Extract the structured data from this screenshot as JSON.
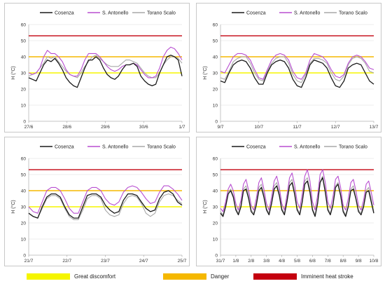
{
  "colors": {
    "cosenza": "#1a1a1a",
    "s_antonello": "#b84fd1",
    "torano": "#a8a8a8",
    "great_discomfort": "#f5f500",
    "danger": "#f5b800",
    "heat_stroke": "#c4000f"
  },
  "thresholds": [
    {
      "label": "Great discomfort",
      "value": 30,
      "color_key": "great_discomfort"
    },
    {
      "label": "Danger",
      "value": 40,
      "color_key": "danger"
    },
    {
      "label": "Imminent heat stroke",
      "value": 53,
      "color_key": "heat_stroke"
    }
  ],
  "chart_data": [
    {
      "type": "line",
      "ylabel": "H (°C)",
      "ylim": [
        0,
        60
      ],
      "yticks": [
        0,
        10,
        20,
        30,
        40,
        50,
        60
      ],
      "xticks": [
        "27/6",
        "28/6",
        "29/6",
        "30/6",
        "1/7"
      ],
      "legend_position": "top",
      "series": [
        {
          "name": "Cosenza",
          "color_key": "cosenza",
          "values": [
            27,
            26,
            25,
            30,
            35,
            38,
            37,
            39,
            36,
            32,
            27,
            24,
            22,
            21,
            27,
            33,
            38,
            38,
            40,
            38,
            33,
            29,
            27,
            26,
            28,
            32,
            35,
            35,
            36,
            34,
            28,
            25,
            23,
            22,
            23,
            30,
            35,
            40,
            41,
            40,
            38,
            28
          ]
        },
        {
          "name": "S. Antonello",
          "color_key": "s_antonello",
          "values": [
            30,
            29,
            30,
            33,
            40,
            44,
            42,
            42,
            40,
            37,
            32,
            29,
            28,
            28,
            32,
            38,
            42,
            42,
            42,
            40,
            37,
            34,
            32,
            31,
            32,
            34,
            35,
            35,
            36,
            35,
            32,
            29,
            27,
            27,
            28,
            33,
            40,
            44,
            46,
            45,
            42,
            38
          ]
        },
        {
          "name": "Torano Scalo",
          "color_key": "torano",
          "values": [
            28,
            29,
            30,
            33,
            36,
            40,
            39,
            40,
            37,
            34,
            31,
            29,
            28,
            27,
            30,
            34,
            37,
            40,
            41,
            39,
            37,
            35,
            34,
            34,
            34,
            36,
            38,
            38,
            37,
            36,
            33,
            30,
            28,
            27,
            27,
            30,
            35,
            38,
            40,
            40,
            39,
            36
          ]
        }
      ]
    },
    {
      "type": "line",
      "ylabel": "H (°C)",
      "ylim": [
        0,
        60
      ],
      "yticks": [
        0,
        10,
        20,
        30,
        40,
        50,
        60
      ],
      "xticks": [
        "9/7",
        "10/7",
        "11/7",
        "12/7",
        "13/7"
      ],
      "legend_position": "top",
      "series": [
        {
          "name": "Cosenza",
          "color_key": "cosenza",
          "values": [
            25,
            24,
            30,
            35,
            37,
            38,
            37,
            33,
            27,
            23,
            23,
            30,
            35,
            37,
            38,
            37,
            33,
            26,
            22,
            21,
            27,
            35,
            38,
            37,
            36,
            33,
            27,
            22,
            21,
            25,
            33,
            35,
            36,
            35,
            30,
            25,
            23
          ]
        },
        {
          "name": "S. Antonello",
          "color_key": "s_antonello",
          "values": [
            31,
            30,
            35,
            40,
            42,
            42,
            41,
            38,
            32,
            27,
            26,
            32,
            38,
            41,
            42,
            41,
            38,
            31,
            27,
            26,
            30,
            38,
            42,
            41,
            40,
            37,
            32,
            28,
            27,
            29,
            36,
            40,
            41,
            40,
            37,
            33,
            32
          ]
        },
        {
          "name": "Torano Scalo",
          "color_key": "torano",
          "values": [
            27,
            26,
            31,
            37,
            39,
            40,
            40,
            36,
            30,
            26,
            25,
            31,
            36,
            39,
            40,
            40,
            36,
            29,
            25,
            24,
            29,
            36,
            39,
            39,
            38,
            36,
            30,
            26,
            25,
            28,
            35,
            39,
            40,
            39,
            36,
            31,
            30
          ]
        }
      ]
    },
    {
      "type": "line",
      "ylabel": "H (°C)",
      "ylim": [
        0,
        60
      ],
      "yticks": [
        0,
        10,
        20,
        30,
        40,
        50,
        60
      ],
      "xticks": [
        "21/7",
        "22/7",
        "23/7",
        "24/7",
        "25/7"
      ],
      "legend_position": "top",
      "series": [
        {
          "name": "Cosenza",
          "color_key": "cosenza",
          "values": [
            26,
            24,
            23,
            30,
            36,
            38,
            38,
            36,
            30,
            25,
            23,
            23,
            30,
            37,
            38,
            38,
            36,
            31,
            28,
            26,
            27,
            34,
            38,
            38,
            37,
            33,
            29,
            27,
            28,
            35,
            39,
            40,
            38,
            33,
            31
          ]
        },
        {
          "name": "S. Antonello",
          "color_key": "s_antonello",
          "values": [
            30,
            27,
            26,
            33,
            40,
            42,
            42,
            40,
            35,
            29,
            26,
            26,
            33,
            40,
            42,
            42,
            40,
            35,
            32,
            31,
            33,
            39,
            42,
            43,
            42,
            39,
            35,
            32,
            33,
            39,
            43,
            43,
            41,
            38,
            34
          ]
        },
        {
          "name": "Torano Scalo",
          "color_key": "torano",
          "values": [
            26,
            24,
            23,
            29,
            35,
            37,
            37,
            35,
            29,
            24,
            22,
            22,
            28,
            35,
            37,
            37,
            35,
            28,
            25,
            24,
            25,
            32,
            36,
            37,
            36,
            32,
            26,
            24,
            26,
            33,
            37,
            38,
            37,
            34,
            32
          ]
        }
      ]
    },
    {
      "type": "line",
      "ylabel": "H (°C)",
      "ylim": [
        0,
        60
      ],
      "yticks": [
        0,
        10,
        20,
        30,
        40,
        50,
        60
      ],
      "xticks": [
        "31/7",
        "1/8",
        "2/8",
        "3/8",
        "4/8",
        "5/8",
        "6/8",
        "7/8",
        "8/8",
        "9/8",
        "10/8"
      ],
      "legend_position": "top",
      "series": [
        {
          "name": "Cosenza",
          "color_key": "cosenza",
          "values": [
            26,
            24,
            30,
            38,
            40,
            36,
            28,
            25,
            30,
            40,
            41,
            35,
            27,
            25,
            31,
            40,
            42,
            36,
            28,
            25,
            32,
            41,
            43,
            37,
            28,
            25,
            33,
            43,
            45,
            38,
            28,
            25,
            33,
            44,
            46,
            39,
            28,
            24,
            32,
            45,
            48,
            39,
            28,
            25,
            31,
            42,
            44,
            37,
            27,
            24,
            30,
            40,
            41,
            35,
            27,
            25,
            30,
            39,
            40,
            33,
            26
          ]
        },
        {
          "name": "S. Antonello",
          "color_key": "s_antonello",
          "values": [
            29,
            27,
            33,
            41,
            44,
            40,
            32,
            28,
            34,
            44,
            47,
            40,
            31,
            28,
            35,
            45,
            48,
            41,
            32,
            28,
            36,
            46,
            49,
            42,
            32,
            28,
            37,
            48,
            51,
            44,
            33,
            29,
            38,
            49,
            53,
            46,
            33,
            28,
            37,
            50,
            53,
            45,
            33,
            29,
            36,
            47,
            49,
            42,
            31,
            28,
            35,
            45,
            47,
            40,
            31,
            28,
            34,
            44,
            46,
            39,
            31
          ]
        },
        {
          "name": "Torano Scalo",
          "color_key": "torano",
          "values": [
            27,
            25,
            31,
            39,
            41,
            37,
            29,
            26,
            31,
            41,
            43,
            37,
            28,
            26,
            32,
            42,
            44,
            38,
            29,
            26,
            33,
            43,
            45,
            39,
            29,
            26,
            34,
            45,
            47,
            40,
            29,
            26,
            34,
            46,
            48,
            41,
            29,
            25,
            33,
            46,
            49,
            41,
            29,
            26,
            32,
            43,
            45,
            38,
            28,
            25,
            31,
            41,
            43,
            36,
            28,
            26,
            31,
            40,
            42,
            35,
            27
          ]
        }
      ]
    }
  ]
}
